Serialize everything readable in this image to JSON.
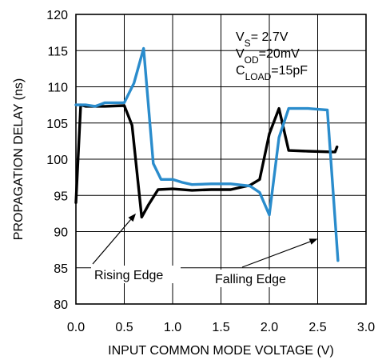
{
  "chart_data": {
    "type": "line",
    "title": "",
    "xlabel": "INPUT COMMON MODE VOLTAGE (V)",
    "ylabel": "PROPAGATION DELAY (ns)",
    "xlim": [
      0,
      3.0
    ],
    "ylim": [
      80,
      120
    ],
    "xticks": [
      0.0,
      0.5,
      1.0,
      1.5,
      2.0,
      2.5,
      3.0
    ],
    "xtick_labels": [
      "0.0",
      "0.5",
      "1.0",
      "1.5",
      "2.0",
      "2.5",
      "3.0"
    ],
    "yticks": [
      80,
      85,
      90,
      95,
      100,
      105,
      110,
      115,
      120
    ],
    "ytick_labels": [
      "80",
      "85",
      "90",
      "95",
      "100",
      "105",
      "110",
      "115",
      "120"
    ],
    "grid": true,
    "conditions": {
      "vs": {
        "main": "V",
        "sub": "S",
        "rest": "= 2.7V"
      },
      "vod": {
        "main": "V",
        "sub": "OD",
        "rest": "=20mV"
      },
      "cload": {
        "main": "C",
        "sub": "LOAD",
        "rest": "=15pF"
      }
    },
    "annotations": [
      {
        "text": "Rising Edge",
        "target_series": "rising",
        "target_x": 0.62,
        "target_y": 92.5
      },
      {
        "text": "Falling Edge",
        "target_series": "falling",
        "target_x": 2.5,
        "target_y": 89.0
      }
    ],
    "series": [
      {
        "id": "rising",
        "color": "#000000",
        "points": [
          [
            0.0,
            94.0
          ],
          [
            0.05,
            107.5
          ],
          [
            0.1,
            107.3
          ],
          [
            0.3,
            107.3
          ],
          [
            0.5,
            107.4
          ],
          [
            0.58,
            104.7
          ],
          [
            0.68,
            92.0
          ],
          [
            0.75,
            93.7
          ],
          [
            0.85,
            95.8
          ],
          [
            1.0,
            95.9
          ],
          [
            1.2,
            95.7
          ],
          [
            1.4,
            95.8
          ],
          [
            1.6,
            95.8
          ],
          [
            1.8,
            96.4
          ],
          [
            1.9,
            97.2
          ],
          [
            2.0,
            103.5
          ],
          [
            2.1,
            107.0
          ],
          [
            2.2,
            101.2
          ],
          [
            2.4,
            101.1
          ],
          [
            2.65,
            101.0
          ],
          [
            2.68,
            101.0
          ],
          [
            2.7,
            101.7
          ]
        ]
      },
      {
        "id": "falling",
        "color": "#2a8ccc",
        "points": [
          [
            0.0,
            107.5
          ],
          [
            0.1,
            107.5
          ],
          [
            0.2,
            107.3
          ],
          [
            0.3,
            107.8
          ],
          [
            0.5,
            107.8
          ],
          [
            0.6,
            110.5
          ],
          [
            0.7,
            115.3
          ],
          [
            0.8,
            99.4
          ],
          [
            0.88,
            97.2
          ],
          [
            1.0,
            97.2
          ],
          [
            1.1,
            96.8
          ],
          [
            1.2,
            96.5
          ],
          [
            1.4,
            96.6
          ],
          [
            1.6,
            96.6
          ],
          [
            1.8,
            96.3
          ],
          [
            1.9,
            95.4
          ],
          [
            2.0,
            92.3
          ],
          [
            2.1,
            103.0
          ],
          [
            2.2,
            107.0
          ],
          [
            2.4,
            107.0
          ],
          [
            2.5,
            106.9
          ],
          [
            2.6,
            106.8
          ],
          [
            2.71,
            86.0
          ]
        ]
      }
    ]
  }
}
